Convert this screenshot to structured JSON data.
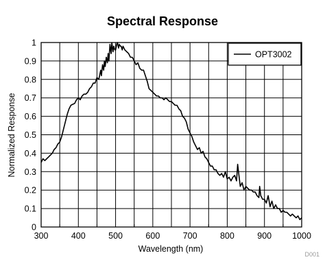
{
  "chart_data": {
    "type": "line",
    "title": "Spectral Response",
    "xlabel": "Wavelength (nm)",
    "ylabel": "Normalized Response",
    "xlim": [
      300,
      1000
    ],
    "ylim": [
      0,
      1
    ],
    "xticks": [
      300,
      400,
      500,
      600,
      700,
      800,
      900,
      1000
    ],
    "yticks": [
      0,
      0.1,
      0.2,
      0.3,
      0.4,
      0.5,
      0.6,
      0.7,
      0.8,
      0.9,
      1
    ],
    "minor_xticks": [
      350,
      450,
      550,
      650,
      750,
      850,
      950
    ],
    "grid": true,
    "legend_position": "top-right",
    "footnote": "D001",
    "colors": {
      "line": "#000000",
      "grid": "#000000",
      "background": "#ffffff",
      "footnote": "#9a9a9a"
    },
    "series": [
      {
        "name": "OPT3002",
        "x": [
          300,
          305,
          310,
          315,
          320,
          325,
          330,
          335,
          340,
          345,
          350,
          355,
          360,
          365,
          370,
          375,
          380,
          385,
          390,
          395,
          400,
          405,
          410,
          415,
          420,
          425,
          430,
          435,
          440,
          445,
          450,
          455,
          460,
          462,
          465,
          468,
          470,
          472,
          475,
          478,
          480,
          482,
          485,
          488,
          490,
          493,
          495,
          498,
          500,
          503,
          505,
          508,
          510,
          513,
          515,
          518,
          520,
          525,
          530,
          535,
          540,
          545,
          550,
          555,
          560,
          565,
          570,
          575,
          580,
          585,
          590,
          595,
          600,
          605,
          610,
          615,
          620,
          625,
          630,
          635,
          640,
          645,
          650,
          655,
          660,
          665,
          670,
          675,
          680,
          685,
          690,
          695,
          700,
          705,
          710,
          715,
          720,
          725,
          730,
          735,
          740,
          745,
          750,
          755,
          760,
          765,
          770,
          775,
          780,
          785,
          790,
          795,
          800,
          805,
          810,
          815,
          820,
          825,
          828,
          832,
          835,
          840,
          845,
          850,
          855,
          860,
          865,
          870,
          875,
          880,
          885,
          887,
          890,
          895,
          900,
          905,
          910,
          915,
          920,
          925,
          930,
          935,
          940,
          945,
          950,
          955,
          960,
          965,
          970,
          975,
          980,
          985,
          990,
          995,
          1000
        ],
        "y": [
          0.35,
          0.37,
          0.36,
          0.37,
          0.38,
          0.39,
          0.4,
          0.42,
          0.43,
          0.45,
          0.46,
          0.49,
          0.53,
          0.57,
          0.61,
          0.64,
          0.66,
          0.665,
          0.67,
          0.69,
          0.7,
          0.69,
          0.71,
          0.72,
          0.72,
          0.73,
          0.75,
          0.76,
          0.78,
          0.78,
          0.81,
          0.8,
          0.85,
          0.82,
          0.88,
          0.85,
          0.9,
          0.87,
          0.92,
          0.89,
          0.94,
          0.9,
          0.99,
          0.94,
          1.0,
          0.95,
          0.98,
          0.96,
          0.96,
          0.99,
          1.0,
          0.97,
          0.99,
          0.98,
          0.98,
          0.96,
          0.98,
          0.96,
          0.95,
          0.94,
          0.92,
          0.92,
          0.9,
          0.88,
          0.89,
          0.86,
          0.85,
          0.85,
          0.82,
          0.79,
          0.75,
          0.74,
          0.73,
          0.72,
          0.71,
          0.71,
          0.7,
          0.7,
          0.69,
          0.7,
          0.69,
          0.68,
          0.68,
          0.67,
          0.66,
          0.66,
          0.64,
          0.63,
          0.6,
          0.59,
          0.57,
          0.53,
          0.51,
          0.49,
          0.46,
          0.44,
          0.42,
          0.43,
          0.4,
          0.41,
          0.38,
          0.37,
          0.35,
          0.33,
          0.33,
          0.31,
          0.31,
          0.29,
          0.28,
          0.29,
          0.27,
          0.3,
          0.26,
          0.27,
          0.25,
          0.27,
          0.28,
          0.25,
          0.34,
          0.27,
          0.22,
          0.24,
          0.2,
          0.22,
          0.21,
          0.2,
          0.2,
          0.19,
          0.19,
          0.17,
          0.16,
          0.22,
          0.17,
          0.15,
          0.15,
          0.13,
          0.17,
          0.11,
          0.14,
          0.1,
          0.12,
          0.1,
          0.1,
          0.08,
          0.09,
          0.08,
          0.08,
          0.07,
          0.06,
          0.07,
          0.06,
          0.05,
          0.06,
          0.04,
          0.05
        ]
      }
    ]
  }
}
